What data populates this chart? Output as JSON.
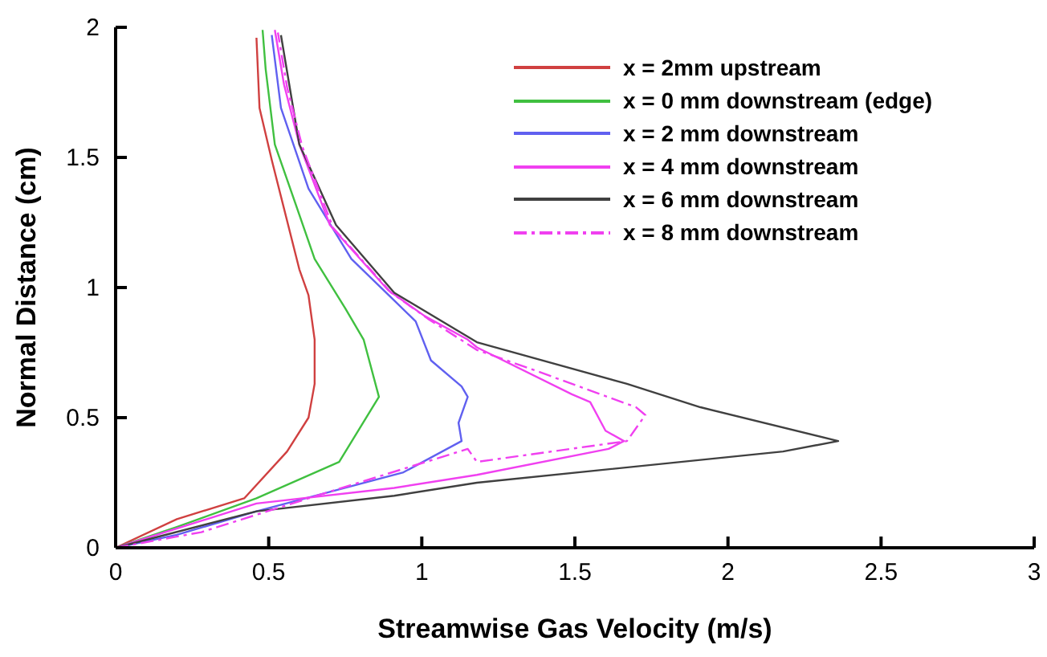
{
  "chart_data": {
    "type": "line",
    "xlabel": "Streamwise Gas Velocity (m/s)",
    "ylabel": "Normal Distance (cm)",
    "xlim": [
      0,
      3
    ],
    "ylim": [
      0,
      2
    ],
    "xticks": [
      0,
      0.5,
      1,
      1.5,
      2,
      2.5,
      3
    ],
    "yticks": [
      0,
      0.5,
      1,
      1.5,
      2
    ],
    "grid": false,
    "legend": "top right",
    "marker": "none",
    "series": [
      {
        "name": "x = 2mm upstream",
        "color": "#d04040",
        "line_style": "solid",
        "x": [
          0,
          0.2,
          0.42,
          0.56,
          0.63,
          0.65,
          0.65,
          0.63,
          0.6,
          0.51,
          0.47,
          0.46
        ],
        "values": [
          0,
          0.11,
          0.19,
          0.37,
          0.5,
          0.63,
          0.8,
          0.97,
          1.07,
          1.49,
          1.69,
          1.96
        ]
      },
      {
        "name": "x = 0 mm downstream (edge)",
        "color": "#40c040",
        "line_style": "solid",
        "x": [
          0,
          0.2,
          0.46,
          0.73,
          0.86,
          0.81,
          0.75,
          0.65,
          0.6,
          0.52,
          0.49,
          0.48
        ],
        "values": [
          0,
          0.08,
          0.19,
          0.33,
          0.58,
          0.8,
          0.92,
          1.11,
          1.28,
          1.55,
          1.84,
          1.99
        ]
      },
      {
        "name": "x = 2 mm downstream",
        "color": "#6060f0",
        "line_style": "solid",
        "x": [
          0,
          0.2,
          0.46,
          0.94,
          1.13,
          1.12,
          1.15,
          1.13,
          1.03,
          0.98,
          0.91,
          0.77,
          0.63,
          0.54,
          0.51
        ],
        "values": [
          0,
          0.05,
          0.14,
          0.29,
          0.41,
          0.48,
          0.58,
          0.62,
          0.72,
          0.87,
          0.95,
          1.11,
          1.38,
          1.69,
          1.97
        ]
      },
      {
        "name": "x = 4 mm downstream",
        "color": "#f040f0",
        "line_style": "solid",
        "x": [
          0,
          0.46,
          0.91,
          1.18,
          1.61,
          1.66,
          1.6,
          1.55,
          1.49,
          1.18,
          1.15,
          1.01,
          0.89,
          0.7,
          0.6,
          0.55,
          0.52
        ],
        "values": [
          0,
          0.17,
          0.23,
          0.28,
          0.38,
          0.41,
          0.45,
          0.56,
          0.59,
          0.77,
          0.8,
          0.89,
          0.99,
          1.24,
          1.55,
          1.78,
          1.99
        ]
      },
      {
        "name": "x = 6 mm downstream",
        "color": "#404040",
        "line_style": "solid",
        "x": [
          0,
          0.46,
          0.91,
          1.18,
          2.18,
          2.36,
          1.91,
          1.67,
          1.18,
          0.91,
          0.72,
          0.6,
          0.54
        ],
        "values": [
          0,
          0.14,
          0.2,
          0.25,
          0.37,
          0.41,
          0.54,
          0.63,
          0.79,
          0.98,
          1.24,
          1.55,
          1.97
        ]
      },
      {
        "name": "x = 8 mm downstream",
        "color": "#f040f0",
        "line_style": "dashdot",
        "x": [
          0,
          0.28,
          0.63,
          1.15,
          1.18,
          1.67,
          1.73,
          1.7,
          1.35,
          1.18,
          1.02,
          0.9,
          0.71,
          0.61,
          0.56,
          0.53
        ],
        "values": [
          0,
          0.06,
          0.19,
          0.38,
          0.33,
          0.41,
          0.51,
          0.54,
          0.69,
          0.76,
          0.88,
          0.98,
          1.23,
          1.54,
          1.77,
          1.98
        ]
      }
    ]
  }
}
